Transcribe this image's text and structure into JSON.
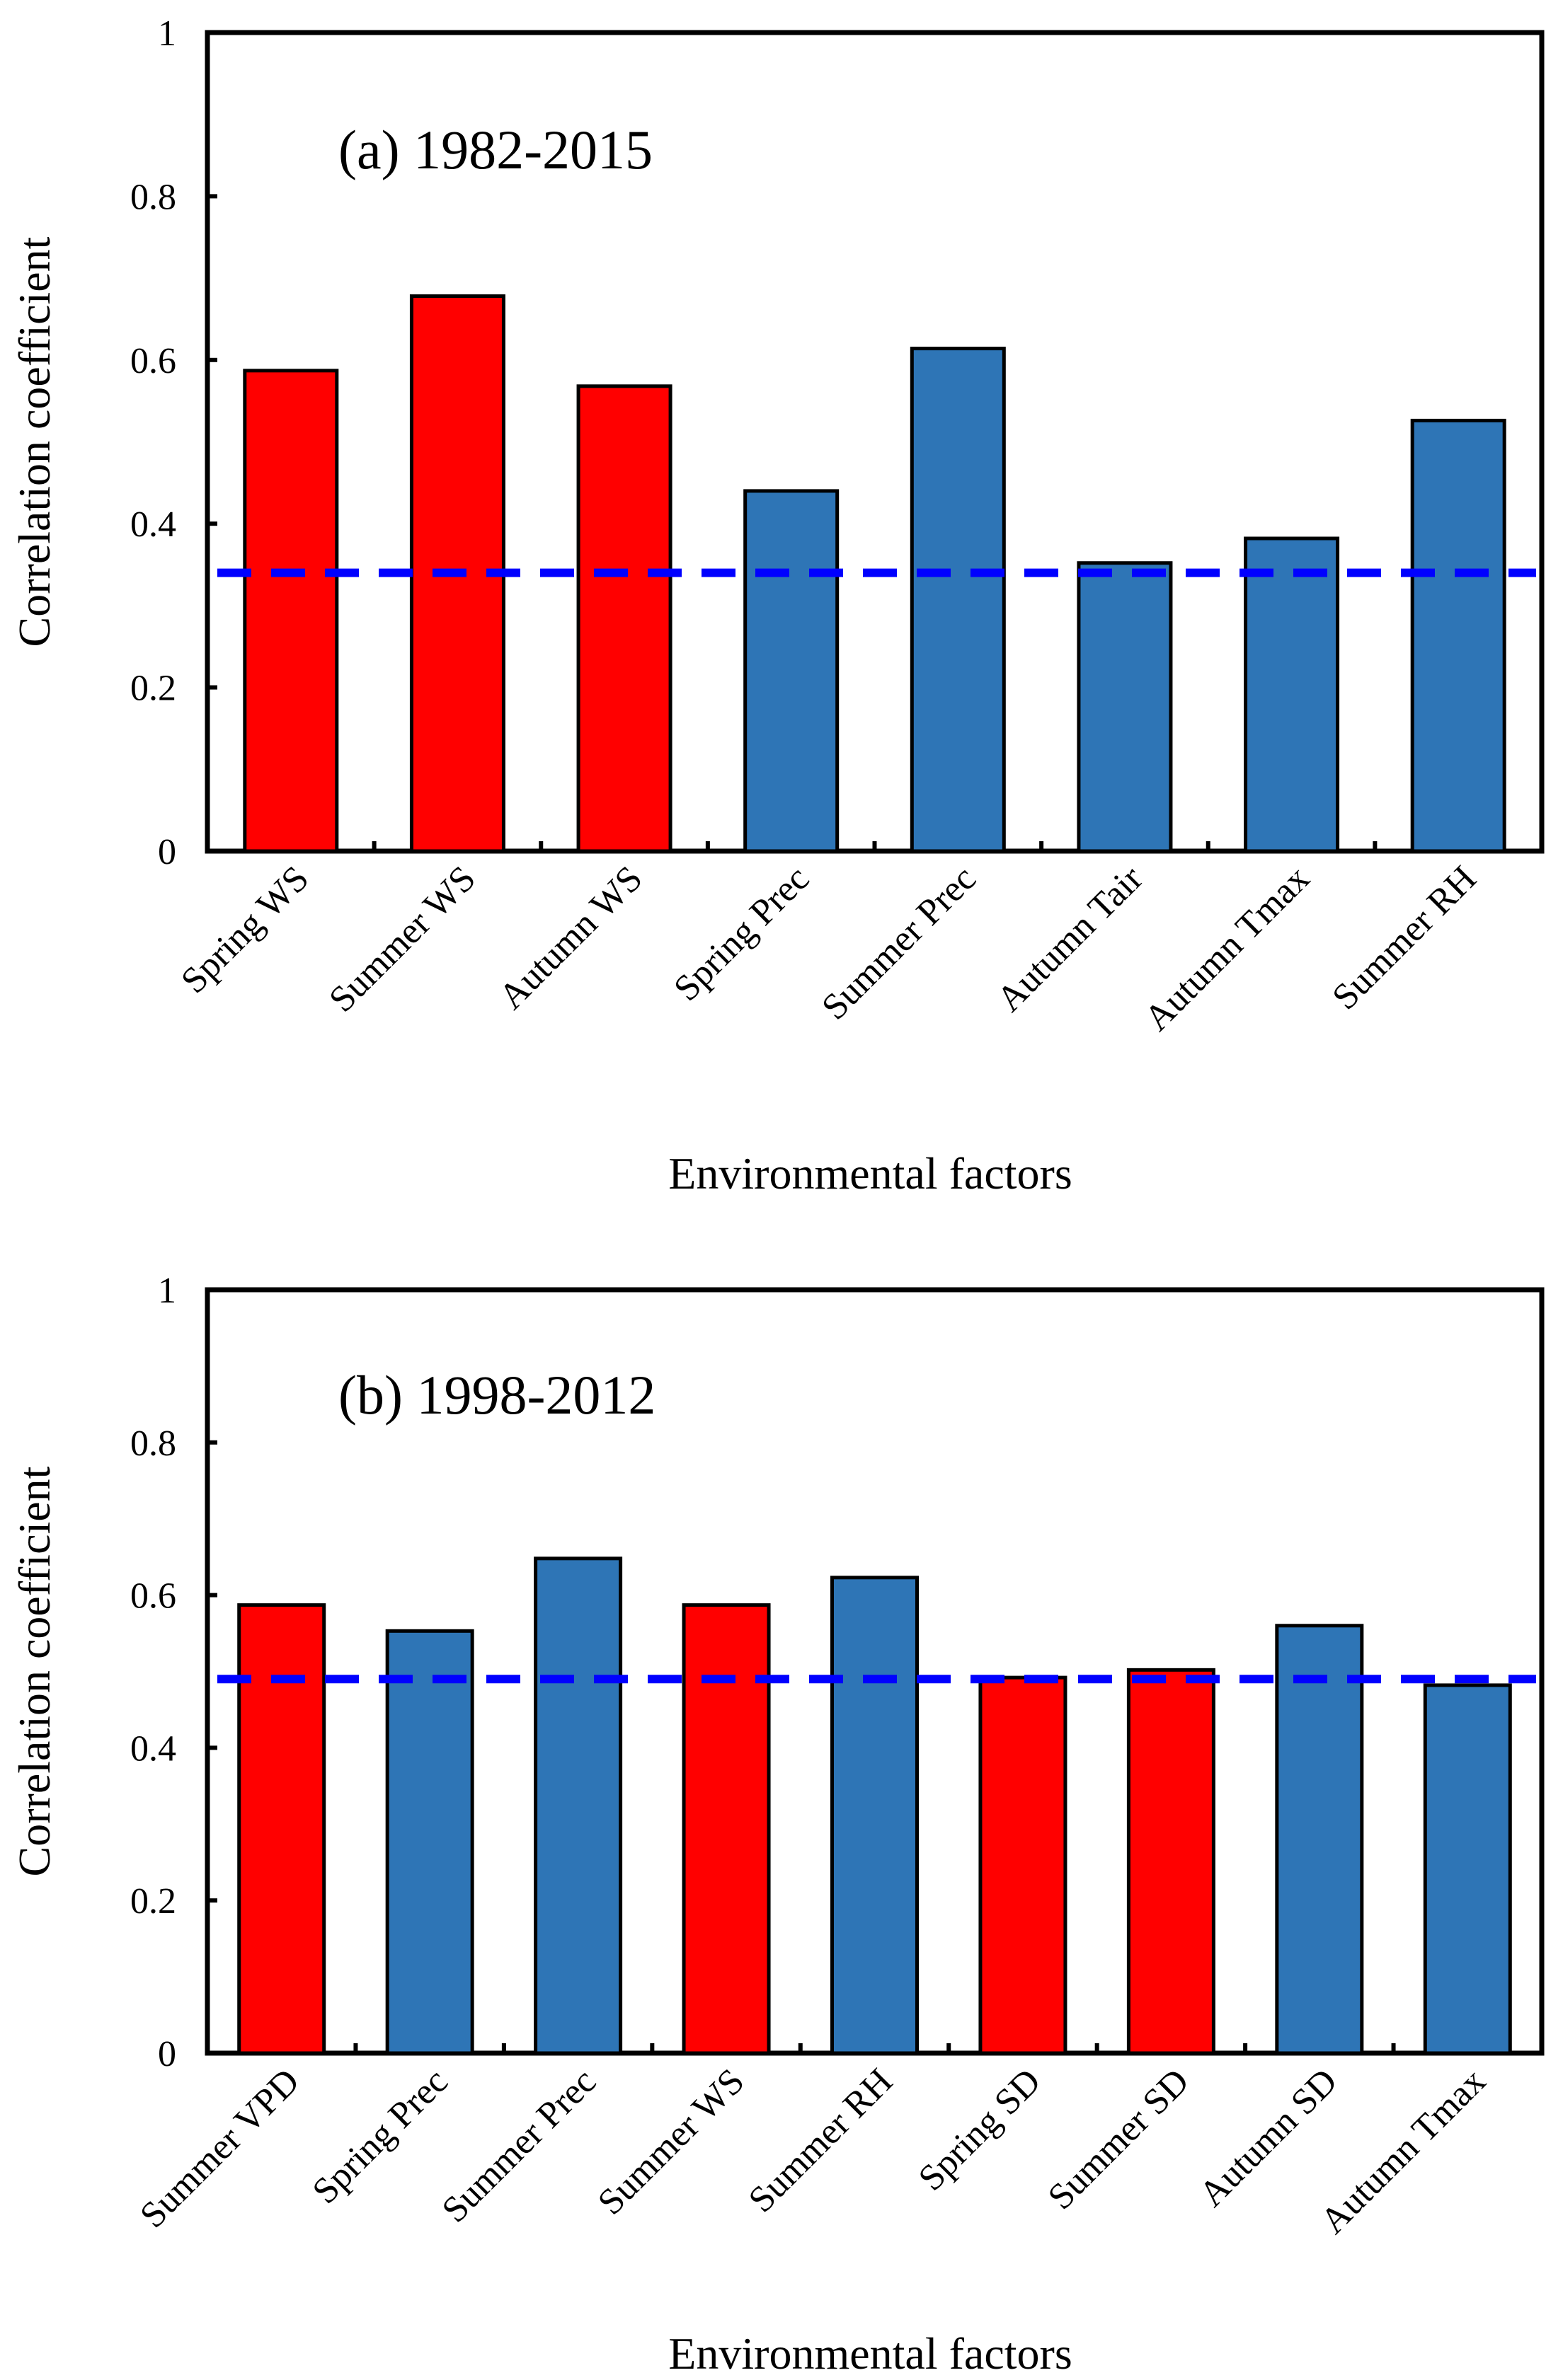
{
  "chart_data": [
    {
      "type": "bar",
      "title": "(a) 1982-2015",
      "xlabel": "Environmental factors",
      "ylabel": "Correlation coefficient",
      "ylim": [
        0,
        1
      ],
      "yticks": [
        0,
        0.2,
        0.4,
        0.6,
        0.8,
        1
      ],
      "ytick_labels": [
        "0",
        "0.2",
        "0.4",
        "0.6",
        "0.8",
        "1"
      ],
      "categories": [
        "Spring WS",
        "Summer WS",
        "Autumn WS",
        "Spring Prec",
        "Summer Prec",
        "Autumn Tair",
        "Autumn Tmax",
        "Summer RH"
      ],
      "values": [
        0.587,
        0.678,
        0.568,
        0.44,
        0.614,
        0.352,
        0.382,
        0.526
      ],
      "bar_colors": [
        "#ff0000",
        "#ff0000",
        "#ff0000",
        "#2e75b6",
        "#2e75b6",
        "#2e75b6",
        "#2e75b6",
        "#2e75b6"
      ],
      "threshold": 0.34,
      "threshold_color": "#0000ff",
      "grid": false
    },
    {
      "type": "bar",
      "title": "(b) 1998-2012",
      "xlabel": "Environmental factors",
      "ylabel": "Correlation coefficient",
      "ylim": [
        0,
        1
      ],
      "yticks": [
        0,
        0.2,
        0.4,
        0.6,
        0.8,
        1
      ],
      "ytick_labels": [
        "0",
        "0.2",
        "0.4",
        "0.6",
        "0.8",
        "1"
      ],
      "categories": [
        "Summer VPD",
        "Spring Prec",
        "Summer Prec",
        "Summer WS",
        "Summer RH",
        "Spring SD",
        "Summer SD",
        "Autumn SD",
        "Autumn Tmax"
      ],
      "values": [
        0.587,
        0.553,
        0.648,
        0.587,
        0.623,
        0.492,
        0.502,
        0.56,
        0.482
      ],
      "bar_colors": [
        "#ff0000",
        "#2e75b6",
        "#2e75b6",
        "#ff0000",
        "#2e75b6",
        "#ff0000",
        "#ff0000",
        "#2e75b6",
        "#2e75b6"
      ],
      "threshold": 0.49,
      "threshold_color": "#0000ff",
      "grid": false
    }
  ]
}
